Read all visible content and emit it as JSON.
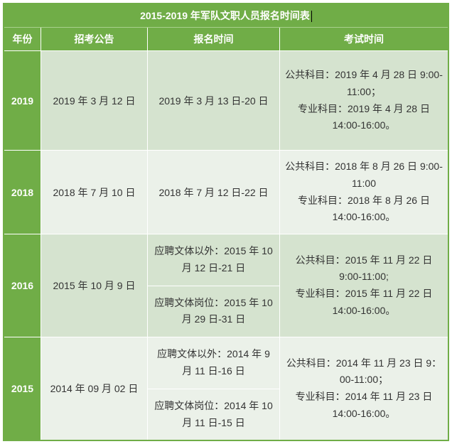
{
  "title": "2015-2019 年军队文职人员报名时间表",
  "headers": {
    "year": "年份",
    "announce": "招考公告",
    "register": "报名时间",
    "exam": "考试时间"
  },
  "rows": [
    {
      "year": "2019",
      "announce": "2019 年 3 月 12 日",
      "register_single": "2019 年 3 月 13 日-20 日",
      "exam": "公共科目：2019 年 4 月 28 日 9:00-11:00；\n专业科目：2019 年 4 月 28 日 14:00-16:00。"
    },
    {
      "year": "2018",
      "announce": "2018 年 7 月 10 日",
      "register_single": "2018 年 7 月 12 日-22 日",
      "exam": "公共科目：2018 年 8 月 26 日 9:00-11:00\n专业科目：2018 年 8 月 26 日 14:00-16:00。"
    },
    {
      "year": "2016",
      "announce": "2015 年 10 月 9 日",
      "register_sub1": "应聘文体以外：2015 年 10 月 12 日-21 日",
      "register_sub2": "应聘文体岗位：2015 年 10 月 29 日-31 日",
      "exam": "公共科目：2015 年 11 月 22 日 9:00-11:00;\n专业科目：2015 年 11 月 22 日 14:00-16:00。"
    },
    {
      "year": "2015",
      "announce": "2014 年 09 月 02 日",
      "register_sub1": "应聘文体以外：2014 年 9 月 11 日-16 日",
      "register_sub2": "应聘文体岗位：2014 年 10 月 11 日-15 日",
      "exam": "公共科目：2014 年 11 月 23 日 9：00-11:00；\n专业科目：2014 年 11 月 23 日 14:00-16:00。"
    }
  ],
  "colors": {
    "header_bg": "#70ad47",
    "header_text": "#ffffff",
    "odd_row_bg": "#d5e3cf",
    "even_row_bg": "#ebf1e9",
    "border": "#ffffff"
  }
}
